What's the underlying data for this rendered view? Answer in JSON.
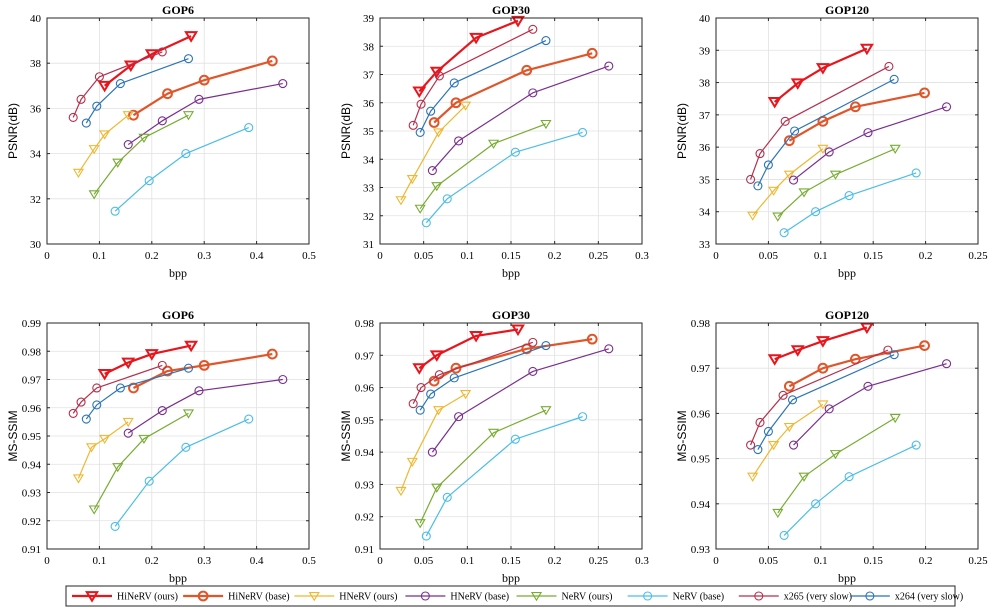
{
  "legend": {
    "items": [
      {
        "label": "HiNeRV (ours)",
        "color": "#e8151c",
        "marker": "triangle-down",
        "thick": true
      },
      {
        "label": "HiNeRV (base)",
        "color": "#e0562a",
        "marker": "circle",
        "thick": true
      },
      {
        "label": "HNeRV (ours)",
        "color": "#f0b72f",
        "marker": "triangle-down",
        "thick": false
      },
      {
        "label": "HNeRV (base)",
        "color": "#7b2e8e",
        "marker": "circle",
        "thick": false
      },
      {
        "label": "NeRV (ours)",
        "color": "#77ac30",
        "marker": "triangle-down",
        "thick": false
      },
      {
        "label": "NeRV (base)",
        "color": "#4cbde8",
        "marker": "circle",
        "thick": false
      },
      {
        "label": "x265 (very slow)",
        "color": "#b5304b",
        "marker": "circle",
        "thick": false
      },
      {
        "label": "x264 (very slow)",
        "color": "#2b74b8",
        "marker": "circle",
        "thick": false
      }
    ]
  },
  "chart_data": [
    {
      "type": "line",
      "title": "GOP6",
      "xlabel": "bpp",
      "ylabel": "PSNR(dB)",
      "xlim": [
        0,
        0.5
      ],
      "ylim": [
        30,
        40
      ],
      "xticks": [
        0,
        0.1,
        0.2,
        0.3,
        0.4,
        0.5
      ],
      "yticks": [
        30,
        32,
        34,
        36,
        38,
        40
      ],
      "xtick_labels": [
        "0",
        "0.1",
        "0.2",
        "0.3",
        "0.4",
        "0.5"
      ],
      "ytick_labels": [
        "30",
        "32",
        "34",
        "36",
        "38",
        "40"
      ],
      "grid": true,
      "series": [
        {
          "name": "HiNeRV (ours)",
          "x": [
            0.11,
            0.16,
            0.2,
            0.275
          ],
          "y": [
            37.0,
            37.9,
            38.4,
            39.2
          ]
        },
        {
          "name": "HiNeRV (base)",
          "x": [
            0.165,
            0.23,
            0.3,
            0.43
          ],
          "y": [
            35.7,
            36.65,
            37.25,
            38.1
          ]
        },
        {
          "name": "HNeRV (ours)",
          "x": [
            0.06,
            0.09,
            0.11,
            0.155
          ],
          "y": [
            33.15,
            34.2,
            34.85,
            35.7
          ]
        },
        {
          "name": "HNeRV (base)",
          "x": [
            0.155,
            0.22,
            0.29,
            0.45
          ],
          "y": [
            34.4,
            35.45,
            36.4,
            37.1
          ]
        },
        {
          "name": "NeRV (ours)",
          "x": [
            0.09,
            0.135,
            0.185,
            0.27
          ],
          "y": [
            32.2,
            33.6,
            34.7,
            35.7
          ]
        },
        {
          "name": "NeRV (base)",
          "x": [
            0.13,
            0.195,
            0.265,
            0.385
          ],
          "y": [
            31.45,
            32.8,
            34.0,
            35.15
          ]
        },
        {
          "name": "x265 (very slow)",
          "x": [
            0.05,
            0.065,
            0.1,
            0.22
          ],
          "y": [
            35.6,
            36.4,
            37.4,
            38.5
          ]
        },
        {
          "name": "x264 (very slow)",
          "x": [
            0.075,
            0.095,
            0.14,
            0.27
          ],
          "y": [
            35.35,
            36.1,
            37.1,
            38.2
          ]
        }
      ]
    },
    {
      "type": "line",
      "title": "GOP30",
      "xlabel": "bpp",
      "ylabel": "PSNR(dB)",
      "xlim": [
        0,
        0.3
      ],
      "ylim": [
        31,
        39
      ],
      "xticks": [
        0,
        0.05,
        0.1,
        0.15,
        0.2,
        0.25,
        0.3
      ],
      "yticks": [
        31,
        32,
        33,
        34,
        35,
        36,
        37,
        38,
        39
      ],
      "xtick_labels": [
        "0",
        "0.05",
        "0.1",
        "0.15",
        "0.2",
        "0.25",
        "0.3"
      ],
      "ytick_labels": [
        "31",
        "32",
        "33",
        "34",
        "35",
        "36",
        "37",
        "38",
        "39"
      ],
      "grid": true,
      "series": [
        {
          "name": "HiNeRV (ours)",
          "x": [
            0.045,
            0.065,
            0.11,
            0.158
          ],
          "y": [
            36.4,
            37.1,
            38.3,
            38.9
          ]
        },
        {
          "name": "HiNeRV (base)",
          "x": [
            0.062,
            0.087,
            0.168,
            0.243
          ],
          "y": [
            35.3,
            36.0,
            37.15,
            37.75
          ]
        },
        {
          "name": "HNeRV (ours)",
          "x": [
            0.024,
            0.037,
            0.067,
            0.098
          ],
          "y": [
            32.55,
            33.3,
            34.95,
            35.9
          ]
        },
        {
          "name": "HNeRV (base)",
          "x": [
            0.06,
            0.09,
            0.175,
            0.262
          ],
          "y": [
            33.6,
            34.65,
            36.35,
            37.3
          ]
        },
        {
          "name": "NeRV (ours)",
          "x": [
            0.046,
            0.065,
            0.13,
            0.19
          ],
          "y": [
            32.25,
            33.05,
            34.55,
            35.25
          ]
        },
        {
          "name": "NeRV (base)",
          "x": [
            0.053,
            0.077,
            0.155,
            0.232
          ],
          "y": [
            31.75,
            32.6,
            34.25,
            34.95
          ]
        },
        {
          "name": "x265 (very slow)",
          "x": [
            0.038,
            0.047,
            0.068,
            0.175
          ],
          "y": [
            35.2,
            35.95,
            36.95,
            38.6
          ]
        },
        {
          "name": "x264 (very slow)",
          "x": [
            0.046,
            0.058,
            0.085,
            0.19
          ],
          "y": [
            34.95,
            35.7,
            36.7,
            38.2
          ]
        }
      ]
    },
    {
      "type": "line",
      "title": "GOP120",
      "xlabel": "bpp",
      "ylabel": "PSNR(dB)",
      "xlim": [
        0,
        0.25
      ],
      "ylim": [
        33,
        40
      ],
      "xticks": [
        0,
        0.05,
        0.1,
        0.15,
        0.2,
        0.25
      ],
      "yticks": [
        33,
        34,
        35,
        36,
        37,
        38,
        39,
        40
      ],
      "xtick_labels": [
        "0",
        "0.05",
        "0.1",
        "0.15",
        "0.2",
        "0.25"
      ],
      "ytick_labels": [
        "33",
        "34",
        "35",
        "36",
        "37",
        "38",
        "39",
        "40"
      ],
      "grid": true,
      "series": [
        {
          "name": "HiNeRV (ours)",
          "x": [
            0.056,
            0.078,
            0.102,
            0.144
          ],
          "y": [
            37.4,
            37.98,
            38.45,
            39.05
          ]
        },
        {
          "name": "HiNeRV (base)",
          "x": [
            0.07,
            0.102,
            0.133,
            0.199
          ],
          "y": [
            36.2,
            36.8,
            37.25,
            37.68
          ]
        },
        {
          "name": "HNeRV (ours)",
          "x": [
            0.035,
            0.055,
            0.07,
            0.102
          ],
          "y": [
            33.88,
            34.65,
            35.15,
            35.95
          ]
        },
        {
          "name": "HNeRV (base)",
          "x": [
            0.074,
            0.108,
            0.145,
            0.22
          ],
          "y": [
            34.98,
            35.85,
            36.45,
            37.25
          ]
        },
        {
          "name": "NeRV (ours)",
          "x": [
            0.059,
            0.084,
            0.114,
            0.171
          ],
          "y": [
            33.85,
            34.6,
            35.15,
            35.95
          ]
        },
        {
          "name": "NeRV (base)",
          "x": [
            0.065,
            0.095,
            0.127,
            0.191
          ],
          "y": [
            33.35,
            34.0,
            34.5,
            35.2
          ]
        },
        {
          "name": "x265 (very slow)",
          "x": [
            0.033,
            0.042,
            0.066,
            0.165
          ],
          "y": [
            35.0,
            35.8,
            36.8,
            38.5
          ]
        },
        {
          "name": "x264 (very slow)",
          "x": [
            0.04,
            0.05,
            0.075,
            0.17
          ],
          "y": [
            34.8,
            35.45,
            36.5,
            38.1
          ]
        }
      ]
    },
    {
      "type": "line",
      "title": "GOP6",
      "xlabel": "bpp",
      "ylabel": "MS-SSIM",
      "xlim": [
        0,
        0.5
      ],
      "ylim": [
        0.91,
        0.99
      ],
      "xticks": [
        0,
        0.1,
        0.2,
        0.3,
        0.4,
        0.5
      ],
      "yticks": [
        0.91,
        0.92,
        0.93,
        0.94,
        0.95,
        0.96,
        0.97,
        0.98,
        0.99
      ],
      "xtick_labels": [
        "0",
        "0.1",
        "0.2",
        "0.3",
        "0.4",
        "0.5"
      ],
      "ytick_labels": [
        "0.91",
        "0.92",
        "0.93",
        "0.94",
        "0.95",
        "0.96",
        "0.97",
        "0.98",
        "0.99"
      ],
      "grid": true,
      "series": [
        {
          "name": "HiNeRV (ours)",
          "x": [
            0.11,
            0.155,
            0.2,
            0.275
          ],
          "y": [
            0.972,
            0.976,
            0.979,
            0.982
          ]
        },
        {
          "name": "HiNeRV (base)",
          "x": [
            0.165,
            0.23,
            0.3,
            0.43
          ],
          "y": [
            0.967,
            0.973,
            0.975,
            0.979
          ]
        },
        {
          "name": "HNeRV (ours)",
          "x": [
            0.06,
            0.085,
            0.11,
            0.155
          ],
          "y": [
            0.935,
            0.946,
            0.949,
            0.955
          ]
        },
        {
          "name": "HNeRV (base)",
          "x": [
            0.155,
            0.22,
            0.29,
            0.45
          ],
          "y": [
            0.951,
            0.959,
            0.966,
            0.97
          ]
        },
        {
          "name": "NeRV (ours)",
          "x": [
            0.09,
            0.135,
            0.185,
            0.27
          ],
          "y": [
            0.924,
            0.939,
            0.949,
            0.958
          ]
        },
        {
          "name": "NeRV (base)",
          "x": [
            0.13,
            0.195,
            0.265,
            0.385
          ],
          "y": [
            0.918,
            0.934,
            0.946,
            0.956
          ]
        },
        {
          "name": "x265 (very slow)",
          "x": [
            0.05,
            0.065,
            0.095,
            0.22
          ],
          "y": [
            0.958,
            0.962,
            0.967,
            0.975
          ]
        },
        {
          "name": "x264 (very slow)",
          "x": [
            0.075,
            0.095,
            0.14,
            0.27
          ],
          "y": [
            0.956,
            0.961,
            0.967,
            0.974
          ]
        }
      ]
    },
    {
      "type": "line",
      "title": "GOP30",
      "xlabel": "bpp",
      "ylabel": "MS-SSIM",
      "xlim": [
        0,
        0.3
      ],
      "ylim": [
        0.91,
        0.98
      ],
      "xticks": [
        0,
        0.05,
        0.1,
        0.15,
        0.2,
        0.25,
        0.3
      ],
      "yticks": [
        0.91,
        0.92,
        0.93,
        0.94,
        0.95,
        0.96,
        0.97,
        0.98
      ],
      "xtick_labels": [
        "0",
        "0.05",
        "0.1",
        "0.15",
        "0.2",
        "0.25",
        "0.3"
      ],
      "ytick_labels": [
        "0.91",
        "0.92",
        "0.93",
        "0.94",
        "0.95",
        "0.96",
        "0.97",
        "0.98"
      ],
      "grid": true,
      "series": [
        {
          "name": "HiNeRV (ours)",
          "x": [
            0.045,
            0.065,
            0.11,
            0.158
          ],
          "y": [
            0.966,
            0.97,
            0.976,
            0.978
          ]
        },
        {
          "name": "HiNeRV (base)",
          "x": [
            0.062,
            0.087,
            0.168,
            0.243
          ],
          "y": [
            0.962,
            0.966,
            0.972,
            0.975
          ]
        },
        {
          "name": "HNeRV (ours)",
          "x": [
            0.024,
            0.037,
            0.067,
            0.098
          ],
          "y": [
            0.928,
            0.937,
            0.953,
            0.958
          ]
        },
        {
          "name": "HNeRV (base)",
          "x": [
            0.06,
            0.09,
            0.175,
            0.262
          ],
          "y": [
            0.94,
            0.951,
            0.965,
            0.972
          ]
        },
        {
          "name": "NeRV (ours)",
          "x": [
            0.046,
            0.065,
            0.13,
            0.19
          ],
          "y": [
            0.918,
            0.929,
            0.946,
            0.953
          ]
        },
        {
          "name": "NeRV (base)",
          "x": [
            0.053,
            0.077,
            0.155,
            0.232
          ],
          "y": [
            0.914,
            0.926,
            0.944,
            0.951
          ]
        },
        {
          "name": "x265 (very slow)",
          "x": [
            0.038,
            0.047,
            0.068,
            0.175
          ],
          "y": [
            0.955,
            0.96,
            0.964,
            0.974
          ]
        },
        {
          "name": "x264 (very slow)",
          "x": [
            0.046,
            0.058,
            0.085,
            0.19
          ],
          "y": [
            0.953,
            0.958,
            0.963,
            0.973
          ]
        }
      ]
    },
    {
      "type": "line",
      "title": "GOP120",
      "xlabel": "bpp",
      "ylabel": "MS-SSIM",
      "xlim": [
        0,
        0.25
      ],
      "ylim": [
        0.93,
        0.98
      ],
      "xticks": [
        0,
        0.05,
        0.1,
        0.15,
        0.2,
        0.25
      ],
      "yticks": [
        0.93,
        0.94,
        0.95,
        0.96,
        0.97,
        0.98
      ],
      "xtick_labels": [
        "0",
        "0.05",
        "0.1",
        "0.15",
        "0.2",
        "0.25"
      ],
      "ytick_labels": [
        "0.93",
        "0.94",
        "0.95",
        "0.96",
        "0.97",
        "0.98"
      ],
      "grid": true,
      "series": [
        {
          "name": "HiNeRV (ours)",
          "x": [
            0.056,
            0.078,
            0.102,
            0.144
          ],
          "y": [
            0.972,
            0.974,
            0.976,
            0.979
          ]
        },
        {
          "name": "HiNeRV (base)",
          "x": [
            0.07,
            0.102,
            0.133,
            0.199
          ],
          "y": [
            0.966,
            0.97,
            0.972,
            0.975
          ]
        },
        {
          "name": "HNeRV (ours)",
          "x": [
            0.035,
            0.055,
            0.07,
            0.102
          ],
          "y": [
            0.946,
            0.953,
            0.957,
            0.962
          ]
        },
        {
          "name": "HNeRV (base)",
          "x": [
            0.074,
            0.108,
            0.145,
            0.22
          ],
          "y": [
            0.953,
            0.961,
            0.966,
            0.971
          ]
        },
        {
          "name": "NeRV (ours)",
          "x": [
            0.059,
            0.084,
            0.114,
            0.171
          ],
          "y": [
            0.938,
            0.946,
            0.951,
            0.959
          ]
        },
        {
          "name": "NeRV (base)",
          "x": [
            0.065,
            0.095,
            0.127,
            0.191
          ],
          "y": [
            0.933,
            0.94,
            0.946,
            0.953
          ]
        },
        {
          "name": "x265 (very slow)",
          "x": [
            0.033,
            0.042,
            0.064,
            0.164
          ],
          "y": [
            0.953,
            0.958,
            0.964,
            0.974
          ]
        },
        {
          "name": "x264 (very slow)",
          "x": [
            0.04,
            0.05,
            0.073,
            0.17
          ],
          "y": [
            0.952,
            0.956,
            0.963,
            0.973
          ]
        }
      ]
    }
  ]
}
